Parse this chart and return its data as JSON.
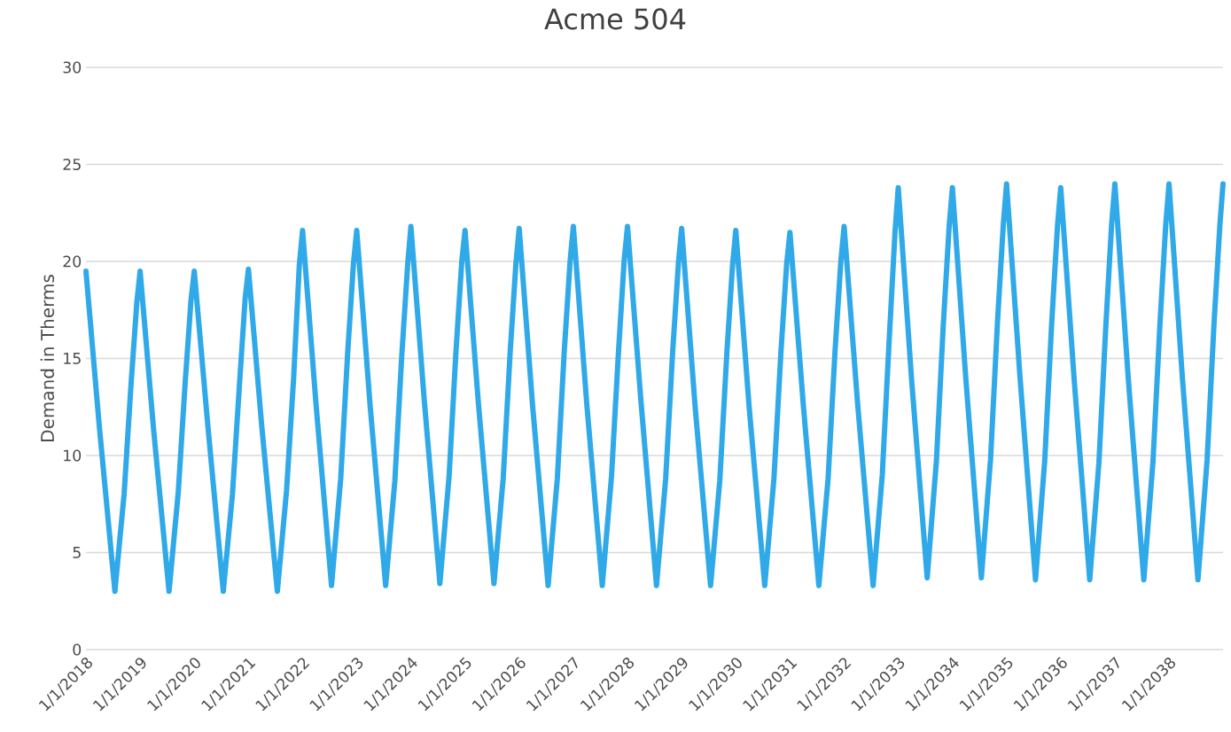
{
  "chart_data": {
    "type": "line",
    "title": "Acme 504",
    "ylabel": "Demand in Therms",
    "x": [
      "2018-01-01",
      "2018-04-01",
      "2018-07-15",
      "2018-09-15",
      "2018-11-01",
      "2018-12-10",
      "2019-01-01",
      "2019-04-01",
      "2019-07-15",
      "2019-09-15",
      "2019-11-01",
      "2019-12-10",
      "2020-01-01",
      "2020-04-01",
      "2020-07-15",
      "2020-09-15",
      "2020-11-01",
      "2020-12-10",
      "2021-01-01",
      "2021-04-01",
      "2021-07-15",
      "2021-09-15",
      "2021-11-01",
      "2021-12-10",
      "2022-01-01",
      "2022-04-01",
      "2022-07-15",
      "2022-09-15",
      "2022-11-01",
      "2022-12-10",
      "2023-01-01",
      "2023-04-01",
      "2023-07-15",
      "2023-09-15",
      "2023-11-01",
      "2023-12-10",
      "2024-01-01",
      "2024-04-01",
      "2024-07-15",
      "2024-09-15",
      "2024-11-01",
      "2024-12-10",
      "2025-01-01",
      "2025-04-01",
      "2025-07-15",
      "2025-09-15",
      "2025-11-01",
      "2025-12-10",
      "2026-01-01",
      "2026-04-01",
      "2026-07-15",
      "2026-09-15",
      "2026-11-01",
      "2026-12-10",
      "2027-01-01",
      "2027-04-01",
      "2027-07-15",
      "2027-09-15",
      "2027-11-01",
      "2027-12-10",
      "2028-01-01",
      "2028-04-01",
      "2028-07-15",
      "2028-09-15",
      "2028-11-01",
      "2028-12-10",
      "2029-01-01",
      "2029-04-01",
      "2029-07-15",
      "2029-09-15",
      "2029-11-01",
      "2029-12-10",
      "2030-01-01",
      "2030-04-01",
      "2030-07-15",
      "2030-09-15",
      "2030-11-01",
      "2030-12-10",
      "2031-01-01",
      "2031-04-01",
      "2031-07-15",
      "2031-09-15",
      "2031-11-01",
      "2031-12-10",
      "2032-01-01",
      "2032-04-01",
      "2032-07-15",
      "2032-09-15",
      "2032-11-01",
      "2032-12-10",
      "2033-01-01",
      "2033-04-01",
      "2033-07-15",
      "2033-09-15",
      "2033-11-01",
      "2033-12-10",
      "2034-01-01",
      "2034-04-01",
      "2034-07-15",
      "2034-09-15",
      "2034-11-01",
      "2034-12-10",
      "2035-01-01",
      "2035-04-01",
      "2035-07-15",
      "2035-09-15",
      "2035-11-01",
      "2035-12-10",
      "2036-01-01",
      "2036-04-01",
      "2036-07-15",
      "2036-09-15",
      "2036-11-01",
      "2036-12-10",
      "2037-01-01",
      "2037-04-01",
      "2037-07-15",
      "2037-09-15",
      "2037-11-01",
      "2037-12-10",
      "2038-01-01",
      "2038-04-01",
      "2038-07-15",
      "2038-09-15",
      "2038-11-01",
      "2038-12-10",
      "2038-12-31"
    ],
    "series": [
      {
        "color": "#2fa9e8",
        "values": [
          19.5,
          11.5,
          3.0,
          8.0,
          13.7,
          17.9,
          19.5,
          11.4,
          3.0,
          8.1,
          13.8,
          18.0,
          19.5,
          11.6,
          3.0,
          8.0,
          13.6,
          18.1,
          19.6,
          11.5,
          3.0,
          8.2,
          13.9,
          19.8,
          21.6,
          12.7,
          3.3,
          8.8,
          15.3,
          19.9,
          21.6,
          12.6,
          3.3,
          8.7,
          15.2,
          19.8,
          21.8,
          12.8,
          3.4,
          8.9,
          15.4,
          20.0,
          21.6,
          12.7,
          3.4,
          8.8,
          15.3,
          19.9,
          21.7,
          12.6,
          3.3,
          8.8,
          15.4,
          20.0,
          21.8,
          12.7,
          3.3,
          8.9,
          15.3,
          20.1,
          21.8,
          12.8,
          3.3,
          8.8,
          15.3,
          19.9,
          21.7,
          12.6,
          3.3,
          8.7,
          15.2,
          19.8,
          21.6,
          12.5,
          3.3,
          8.8,
          15.3,
          19.9,
          21.5,
          12.6,
          3.3,
          8.8,
          15.4,
          20.0,
          21.8,
          12.7,
          3.3,
          9.0,
          16.0,
          21.5,
          23.8,
          13.9,
          3.7,
          9.7,
          16.8,
          21.8,
          23.8,
          14.0,
          3.7,
          9.8,
          16.9,
          21.9,
          24.0,
          14.1,
          3.6,
          9.7,
          16.8,
          21.8,
          23.8,
          13.9,
          3.6,
          9.6,
          16.7,
          21.9,
          24.0,
          14.0,
          3.6,
          9.7,
          16.8,
          21.9,
          24.0,
          14.0,
          3.6,
          9.8,
          16.9,
          21.9,
          24.0
        ]
      }
    ],
    "xlim": [
      "2018-01-01",
      "2038-12-31"
    ],
    "xticks": [
      {
        "value": "2018-01-01",
        "label": "1/1/2018"
      },
      {
        "value": "2019-01-01",
        "label": "1/1/2019"
      },
      {
        "value": "2020-01-01",
        "label": "1/1/2020"
      },
      {
        "value": "2021-01-01",
        "label": "1/1/2021"
      },
      {
        "value": "2022-01-01",
        "label": "1/1/2022"
      },
      {
        "value": "2023-01-01",
        "label": "1/1/2023"
      },
      {
        "value": "2024-01-01",
        "label": "1/1/2024"
      },
      {
        "value": "2025-01-01",
        "label": "1/1/2025"
      },
      {
        "value": "2026-01-01",
        "label": "1/1/2026"
      },
      {
        "value": "2027-01-01",
        "label": "1/1/2027"
      },
      {
        "value": "2028-01-01",
        "label": "1/1/2028"
      },
      {
        "value": "2029-01-01",
        "label": "1/1/2029"
      },
      {
        "value": "2030-01-01",
        "label": "1/1/2030"
      },
      {
        "value": "2031-01-01",
        "label": "1/1/2031"
      },
      {
        "value": "2032-01-01",
        "label": "1/1/2032"
      },
      {
        "value": "2033-01-01",
        "label": "1/1/2033"
      },
      {
        "value": "2034-01-01",
        "label": "1/1/2034"
      },
      {
        "value": "2035-01-01",
        "label": "1/1/2035"
      },
      {
        "value": "2036-01-01",
        "label": "1/1/2036"
      },
      {
        "value": "2037-01-01",
        "label": "1/1/2037"
      },
      {
        "value": "2038-01-01",
        "label": "1/1/2038"
      }
    ],
    "ylim": [
      0,
      30
    ],
    "yticks": [
      0,
      5,
      10,
      15,
      20,
      25,
      30
    ],
    "grid": "y",
    "marker": "none",
    "line_style": "solid"
  }
}
